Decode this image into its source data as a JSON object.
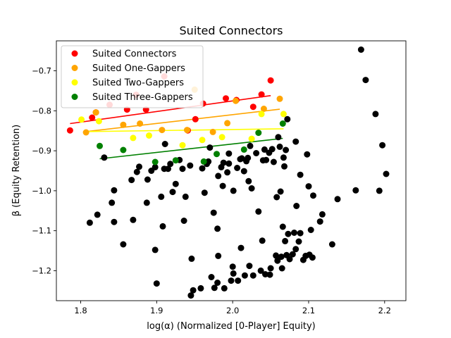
{
  "chart_data": {
    "type": "scatter",
    "title": "Suited Connectors",
    "xlabel": "log(α) (Normalized [0-Player] Equity)",
    "ylabel": "β (Equity Retention)",
    "xlim": [
      1.768,
      2.228
    ],
    "ylim": [
      -1.275,
      -0.625
    ],
    "xticks": [
      "1.8",
      "1.9",
      "2.0",
      "2.1",
      "2.2"
    ],
    "yticks": [
      "−0.7",
      "−0.8",
      "−0.9",
      "−1.0",
      "−1.1",
      "−1.2"
    ],
    "xtick_values": [
      1.8,
      1.9,
      2.0,
      2.1,
      2.2
    ],
    "ytick_values": [
      -0.7,
      -0.8,
      -0.9,
      -1.0,
      -1.1,
      -1.2
    ],
    "grid": false,
    "legend_position": "top-left",
    "series": [
      {
        "name": "Suited Connectors",
        "color": "#ff0000",
        "points": [
          [
            1.786,
            -0.849
          ],
          [
            1.815,
            -0.817
          ],
          [
            1.82,
            -0.804
          ],
          [
            1.838,
            -0.785
          ],
          [
            1.861,
            -0.797
          ],
          [
            1.873,
            -0.76
          ],
          [
            1.886,
            -0.797
          ],
          [
            1.91,
            -0.714
          ],
          [
            1.941,
            -0.849
          ],
          [
            1.951,
            -0.821
          ],
          [
            1.961,
            -0.782
          ],
          [
            1.991,
            -0.769
          ],
          [
            2.005,
            -0.773
          ],
          [
            2.027,
            -0.79
          ],
          [
            2.038,
            -0.759
          ],
          [
            2.05,
            -0.724
          ]
        ],
        "fit": [
          [
            1.786,
            -0.832
          ],
          [
            2.05,
            -0.762
          ]
        ]
      },
      {
        "name": "Suited One-Gappers",
        "color": "#ffa500",
        "points": [
          [
            1.807,
            -0.854
          ],
          [
            1.82,
            -0.804
          ],
          [
            1.856,
            -0.835
          ],
          [
            1.878,
            -0.832
          ],
          [
            1.907,
            -0.848
          ],
          [
            1.94,
            -0.848
          ],
          [
            1.95,
            -0.747
          ],
          [
            1.974,
            -0.853
          ],
          [
            1.993,
            -0.831
          ],
          [
            2.004,
            -0.775
          ],
          [
            2.041,
            -0.795
          ],
          [
            2.062,
            -0.77
          ]
        ],
        "fit": [
          [
            1.807,
            -0.852
          ],
          [
            2.062,
            -0.796
          ]
        ]
      },
      {
        "name": "Suited Two-Gappers",
        "color": "#ffff00",
        "points": [
          [
            1.801,
            -0.822
          ],
          [
            1.824,
            -0.826
          ],
          [
            1.869,
            -0.868
          ],
          [
            1.89,
            -0.862
          ],
          [
            1.934,
            -0.886
          ],
          [
            1.96,
            -0.873
          ],
          [
            1.986,
            -0.866
          ],
          [
            2.025,
            -0.87
          ],
          [
            2.038,
            -0.808
          ],
          [
            2.067,
            -0.808
          ]
        ],
        "fit": [
          [
            1.807,
            -0.852
          ],
          [
            2.067,
            -0.845
          ]
        ]
      },
      {
        "name": "Suited Three-Gappers",
        "color": "#008000",
        "points": [
          [
            1.825,
            -0.888
          ],
          [
            1.856,
            -0.898
          ],
          [
            1.898,
            -0.928
          ],
          [
            1.925,
            -0.924
          ],
          [
            1.962,
            -0.927
          ],
          [
            1.979,
            -0.908
          ],
          [
            2.015,
            -0.897
          ],
          [
            2.034,
            -0.855
          ],
          [
            2.066,
            -0.832
          ]
        ],
        "fit": [
          [
            1.825,
            -0.92
          ],
          [
            2.066,
            -0.869
          ]
        ]
      },
      {
        "name": "",
        "color": "#000000",
        "points": [
          [
            1.831,
            -0.917
          ],
          [
            1.841,
            -1.03
          ],
          [
            1.844,
            -0.999
          ],
          [
            1.844,
            -1.078
          ],
          [
            1.822,
            -1.06
          ],
          [
            1.812,
            -1.08
          ],
          [
            1.856,
            -1.134
          ],
          [
            1.867,
            -0.973
          ],
          [
            1.869,
            -1.073
          ],
          [
            1.874,
            -0.953
          ],
          [
            1.877,
            -0.94
          ],
          [
            1.887,
            -1.03
          ],
          [
            1.888,
            -0.972
          ],
          [
            1.893,
            -0.95
          ],
          [
            1.898,
            -0.941
          ],
          [
            1.898,
            -1.148
          ],
          [
            1.9,
            -1.232
          ],
          [
            1.906,
            -1.015
          ],
          [
            1.908,
            -1.089
          ],
          [
            1.91,
            -0.945
          ],
          [
            1.911,
            -0.883
          ],
          [
            1.915,
            -0.945
          ],
          [
            1.918,
            -0.933
          ],
          [
            1.921,
            -1.003
          ],
          [
            1.925,
            -0.983
          ],
          [
            1.93,
            -0.923
          ],
          [
            1.934,
            -0.945
          ],
          [
            1.936,
            -1.075
          ],
          [
            1.938,
            -1.015
          ],
          [
            1.944,
            -0.937
          ],
          [
            1.946,
            -1.17
          ],
          [
            1.945,
            -1.262
          ],
          [
            1.948,
            -1.249
          ],
          [
            1.958,
            -1.244
          ],
          [
            1.96,
            -0.944
          ],
          [
            1.963,
            -1.005
          ],
          [
            1.966,
            -0.933
          ],
          [
            1.968,
            -0.927
          ],
          [
            1.97,
            -0.892
          ],
          [
            1.972,
            -1.216
          ],
          [
            1.975,
            -1.055
          ],
          [
            1.976,
            -1.243
          ],
          [
            1.98,
            -1.23
          ],
          [
            1.98,
            -1.095
          ],
          [
            1.981,
            -0.963
          ],
          [
            1.981,
            -1.163
          ],
          [
            1.985,
            -0.941
          ],
          [
            1.987,
            -0.988
          ],
          [
            1.988,
            -0.93
          ],
          [
            1.989,
            -1.244
          ],
          [
            1.993,
            -0.954
          ],
          [
            1.995,
            -0.907
          ],
          [
            1.995,
            -0.932
          ],
          [
            1.998,
            -1.225
          ],
          [
            2.0,
            -1.19
          ],
          [
            2.001,
            -1.0
          ],
          [
            2.001,
            -1.207
          ],
          [
            2.006,
            -0.943
          ],
          [
            2.007,
            -1.225
          ],
          [
            2.01,
            -0.921
          ],
          [
            2.011,
            -1.143
          ],
          [
            2.012,
            -0.919
          ],
          [
            2.015,
            -0.951
          ],
          [
            2.016,
            -1.212
          ],
          [
            2.018,
            -0.926
          ],
          [
            2.02,
            -0.918
          ],
          [
            2.021,
            -0.976
          ],
          [
            2.022,
            -1.188
          ],
          [
            2.023,
            -0.888
          ],
          [
            2.025,
            -0.994
          ],
          [
            2.027,
            -1.212
          ],
          [
            2.031,
            -0.906
          ],
          [
            2.034,
            -1.052
          ],
          [
            2.037,
            -1.2
          ],
          [
            2.039,
            -1.125
          ],
          [
            2.04,
            -0.924
          ],
          [
            2.042,
            -0.897
          ],
          [
            2.043,
            -1.209
          ],
          [
            2.044,
            -0.923
          ],
          [
            2.048,
            -0.905
          ],
          [
            2.049,
            -1.21
          ],
          [
            2.05,
            -1.194
          ],
          [
            2.052,
            -0.896
          ],
          [
            2.054,
            -0.928
          ],
          [
            2.057,
            -1.162
          ],
          [
            2.058,
            -1.016
          ],
          [
            2.059,
            -1.175
          ],
          [
            2.06,
            -0.866
          ],
          [
            2.062,
            -0.89
          ],
          [
            2.063,
            -1.002
          ],
          [
            2.064,
            -1.165
          ],
          [
            2.065,
            -1.194
          ],
          [
            2.066,
            -1.09
          ],
          [
            2.067,
            -0.917
          ],
          [
            2.068,
            -0.939
          ],
          [
            2.069,
            -1.126
          ],
          [
            2.07,
            -0.898
          ],
          [
            2.071,
            -1.161
          ],
          [
            2.072,
            -0.821
          ],
          [
            2.073,
            -1.108
          ],
          [
            2.075,
            -1.171
          ],
          [
            2.079,
            -1.159
          ],
          [
            2.081,
            -1.105
          ],
          [
            2.083,
            -1.146
          ],
          [
            2.083,
            -0.877
          ],
          [
            2.084,
            -1.038
          ],
          [
            2.087,
            -1.127
          ],
          [
            2.089,
            -1.106
          ],
          [
            2.089,
            -0.96
          ],
          [
            2.093,
            -1.173
          ],
          [
            2.096,
            -1.163
          ],
          [
            2.098,
            -0.909
          ],
          [
            2.1,
            -0.989
          ],
          [
            2.101,
            -1.16
          ],
          [
            2.103,
            -1.098
          ],
          [
            2.105,
            -1.167
          ],
          [
            2.106,
            -1.012
          ],
          [
            2.115,
            -1.077
          ],
          [
            2.118,
            -1.059
          ],
          [
            2.131,
            -1.134
          ],
          [
            2.138,
            -1.021
          ],
          [
            2.162,
            -0.999
          ],
          [
            2.169,
            -0.647
          ],
          [
            2.175,
            -0.723
          ],
          [
            2.188,
            -0.808
          ],
          [
            2.193,
            -1.0
          ],
          [
            2.197,
            -0.886
          ],
          [
            2.202,
            -0.958
          ]
        ]
      }
    ]
  }
}
